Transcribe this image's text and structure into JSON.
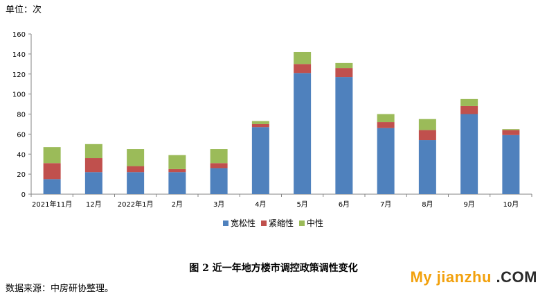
{
  "unit_label": "单位：次",
  "caption": "图 2    近一年地方楼市调控政策调性变化",
  "source_note": "数据来源：中房研协整理。",
  "watermark": {
    "main": "My jianzhu",
    "suffix": ".COM"
  },
  "colors": {
    "loose": "#4f81bd",
    "tight": "#c0504d",
    "neutral": "#9bbb59",
    "axis": "#868686"
  },
  "chart_data": {
    "type": "bar",
    "stacked": true,
    "categories": [
      "2021年11月",
      "12月",
      "2022年1月",
      "2月",
      "3月",
      "4月",
      "5月",
      "6月",
      "7月",
      "8月",
      "9月",
      "10月"
    ],
    "series": [
      {
        "name": "宽松性",
        "color": "#4f81bd",
        "values": [
          15,
          22,
          22,
          22,
          26,
          67,
          121,
          117,
          66,
          54,
          80,
          59
        ]
      },
      {
        "name": "紧缩性",
        "color": "#c0504d",
        "values": [
          16,
          14,
          6,
          3,
          5,
          3,
          9,
          9,
          6,
          10,
          8,
          5
        ]
      },
      {
        "name": "中性",
        "color": "#9bbb59",
        "values": [
          16,
          14,
          17,
          14,
          14,
          3,
          12,
          5,
          8,
          11,
          7,
          1
        ]
      }
    ],
    "ylim": [
      0,
      160
    ],
    "yticks": [
      0,
      20,
      40,
      60,
      80,
      100,
      120,
      140,
      160
    ],
    "grid": false,
    "legend": "bottom"
  }
}
